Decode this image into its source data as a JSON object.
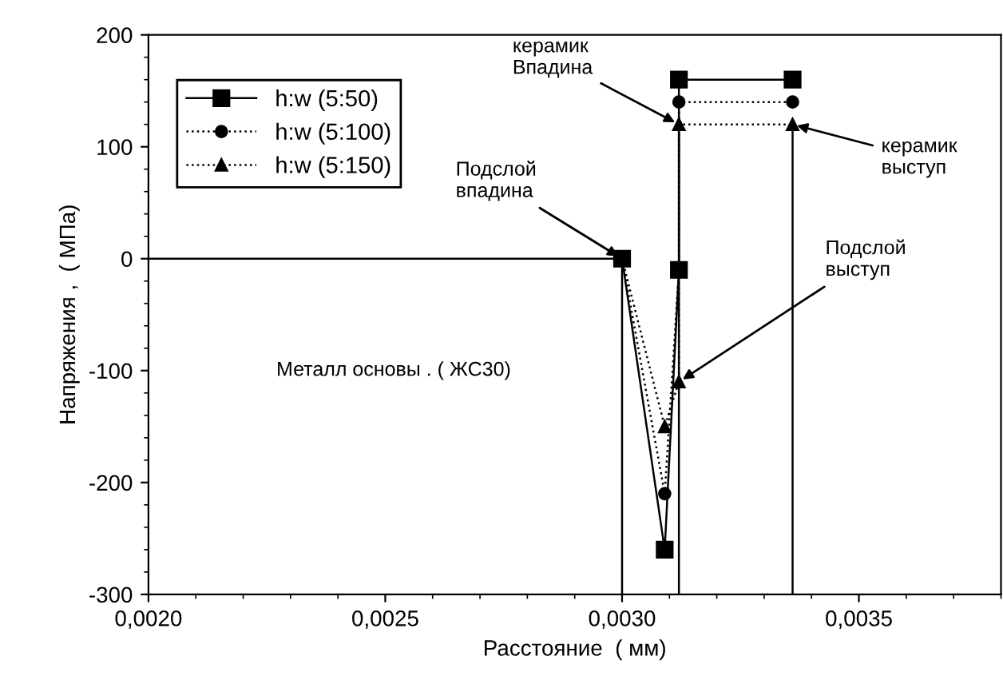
{
  "chart_data": {
    "type": "line",
    "xlabel": "Расстояние  ( мм)",
    "ylabel": "Напряжения ,  ( МПа)",
    "xlim": [
      0.002,
      0.0038
    ],
    "xticks": [
      {
        "value": 0.002,
        "label": "0,0020"
      },
      {
        "value": 0.0025,
        "label": "0,0025"
      },
      {
        "value": 0.003,
        "label": "0,0030"
      },
      {
        "value": 0.0035,
        "label": "0,0035"
      }
    ],
    "ylim": [
      -300,
      200
    ],
    "yticks": [
      -300,
      -200,
      -100,
      0,
      100,
      200
    ],
    "grid": false,
    "legend": "top left",
    "series": [
      {
        "name": "h:w (5:50)",
        "color": "#000000",
        "marker": "square",
        "line_style": "solid",
        "x": [
          0.003,
          0.00309,
          0.00312,
          0.00312,
          0.00336
        ],
        "values": [
          0,
          -260,
          -10,
          160,
          160
        ]
      },
      {
        "name": "h:w (5:100)",
        "color": "#000000",
        "marker": "circle",
        "line_style": "dotted",
        "x": [
          0.003,
          0.00309,
          0.00312,
          0.00312,
          0.00336
        ],
        "values": [
          0,
          -210,
          -10,
          140,
          140
        ]
      },
      {
        "name": "h:w (5:150)",
        "color": "#000000",
        "marker": "triangle",
        "line_style": "dotted",
        "x": [
          0.003,
          0.00309,
          0.00312,
          0.00312,
          0.00336
        ],
        "values": [
          0,
          -150,
          -110,
          120,
          120
        ]
      },
      {
        "color": "#000000",
        "marker": "none",
        "line_style": "solid",
        "x": [
          0.002,
          0.003,
          0.003
        ],
        "values": [
          0,
          0,
          -300
        ]
      },
      {
        "color": "#000000",
        "marker": "none",
        "line_style": "solid",
        "x": [
          0.00312,
          0.00312
        ],
        "values": [
          -300,
          120
        ]
      },
      {
        "color": "#000000",
        "marker": "none",
        "line_style": "solid",
        "x": [
          0.00336,
          0.00336
        ],
        "values": [
          -300,
          120
        ]
      }
    ],
    "annotations": [
      {
        "text": "керамик\nВпадина",
        "x": 0.00312,
        "y": 120
      },
      {
        "text": "Подслой\nвпадина",
        "x": 0.003,
        "y": 0
      },
      {
        "text": "керамик\nвыступ",
        "x": 0.00336,
        "y": 120
      },
      {
        "text": "Подслой\nвыступ",
        "x": 0.00312,
        "y": -110
      },
      "Металл основы . ( ЖС30)"
    ]
  }
}
